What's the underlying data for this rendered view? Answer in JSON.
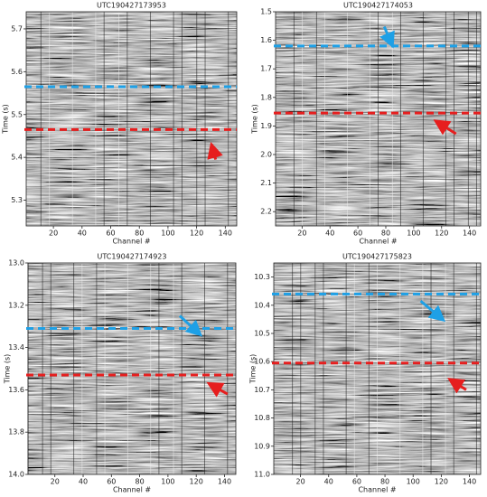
{
  "chart_data": [
    {
      "type": "image",
      "title": "UTC190427173953",
      "xlabel": "Channel #",
      "ylabel": "Time (s)",
      "xlim": [
        1,
        148
      ],
      "xticks": [
        20,
        40,
        60,
        80,
        100,
        120,
        140
      ],
      "ylim": [
        5.24,
        5.74
      ],
      "yticks": [
        5.3,
        5.4,
        5.5,
        5.6,
        5.7
      ],
      "invert_y": false,
      "lines": [
        {
          "color": "#1ea0e6",
          "value": 5.565
        },
        {
          "color": "#e61e1e",
          "value": 5.465
        }
      ]
    },
    {
      "type": "image",
      "title": "UTC190427174053",
      "xlabel": "Channel #",
      "ylabel": "Time (s)",
      "xlim": [
        1,
        148
      ],
      "xticks": [
        20,
        40,
        60,
        80,
        100,
        120,
        140
      ],
      "ylim": [
        1.5,
        2.25
      ],
      "yticks": [
        1.5,
        1.6,
        1.7,
        1.8,
        1.9,
        {
          "value": 2,
          "label": "2.0"
        },
        2.1,
        2.2
      ],
      "invert_y": true,
      "lines": [
        {
          "color": "#1ea0e6",
          "value": 1.62
        },
        {
          "color": "#e61e1e",
          "value": 1.855
        }
      ]
    },
    {
      "type": "image",
      "title": "UTC190427174923",
      "xlabel": "Channel #",
      "ylabel": "Time (s)",
      "xlim": [
        1,
        148
      ],
      "xticks": [
        20,
        40,
        60,
        80,
        100,
        120,
        140
      ],
      "ylim": [
        13,
        14
      ],
      "yticks": [
        {
          "value": 13,
          "label": "13.0"
        },
        13.2,
        13.4,
        13.6,
        13.8,
        {
          "value": 14,
          "label": "14.0"
        }
      ],
      "invert_y": true,
      "lines": [
        {
          "color": "#1ea0e6",
          "value": 13.31
        },
        {
          "color": "#e61e1e",
          "value": 13.53
        }
      ]
    },
    {
      "type": "image",
      "title": "UTC190427175823",
      "xlabel": "Channel #",
      "ylabel": "Time (s)",
      "xlim": [
        1,
        148
      ],
      "xticks": [
        20,
        40,
        60,
        80,
        100,
        120,
        140
      ],
      "ylim": [
        10.25,
        11
      ],
      "yticks": [
        10.3,
        10.4,
        10.5,
        10.6,
        10.7,
        10.8,
        10.9,
        {
          "value": 11,
          "label": "11.0"
        }
      ],
      "invert_y": true,
      "lines": [
        {
          "color": "#1ea0e6",
          "value": 10.36
        },
        {
          "color": "#e61e1e",
          "value": 10.605
        }
      ]
    }
  ]
}
